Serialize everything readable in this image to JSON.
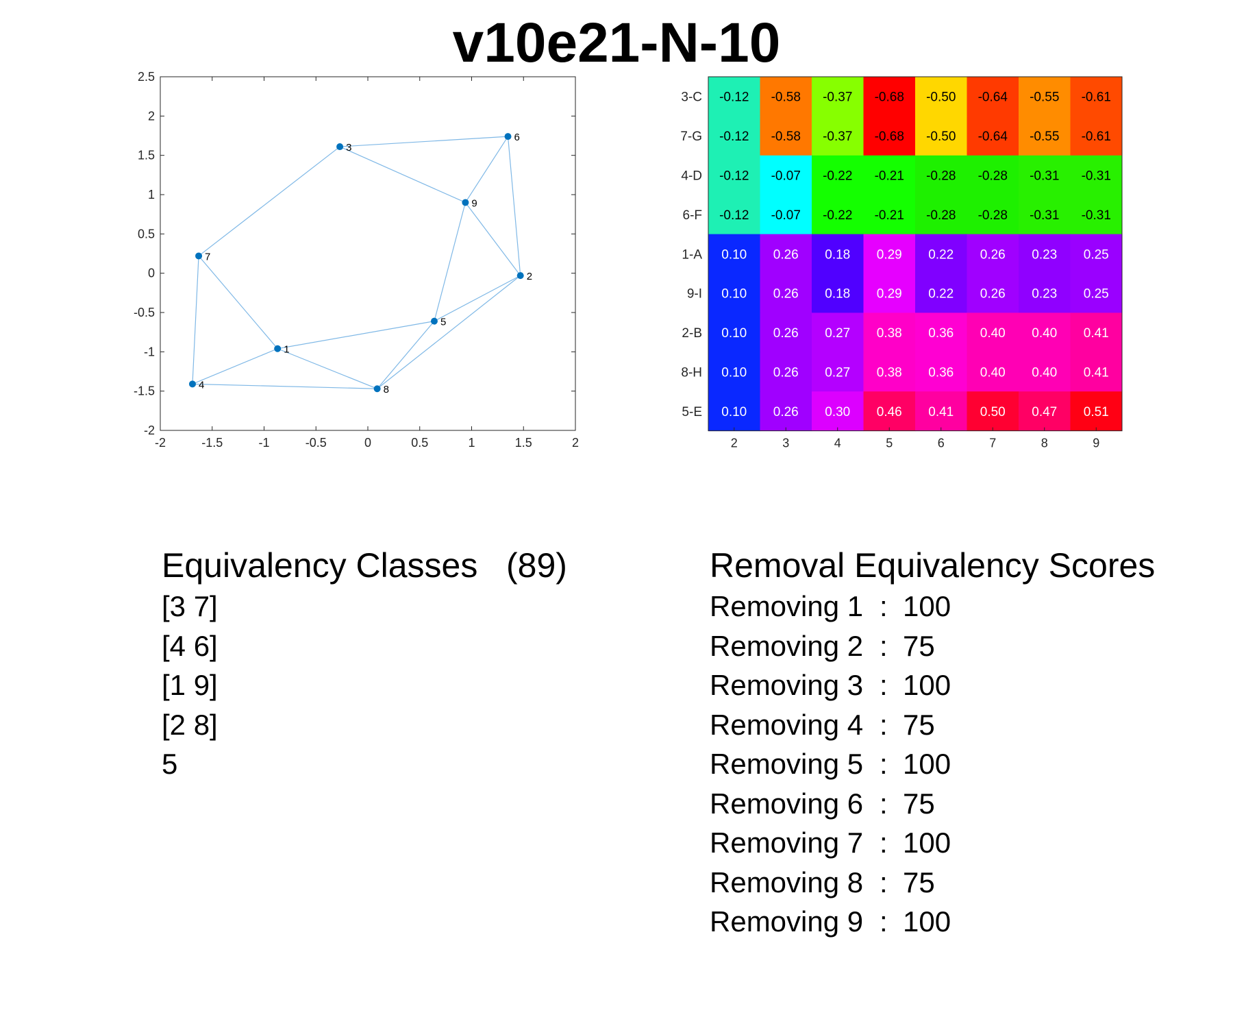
{
  "title": "v10e21-N-10",
  "chart_data": [
    {
      "type": "scatter",
      "subtype": "graph-network",
      "xlim": [
        -2,
        2
      ],
      "ylim": [
        -2,
        2.5
      ],
      "xticks": [
        "-2",
        "-1.5",
        "-1",
        "-0.5",
        "0",
        "0.5",
        "1",
        "1.5",
        "2"
      ],
      "yticks": [
        "2.5",
        "2",
        "1.5",
        "1",
        "0.5",
        "0",
        "-0.5",
        "-1",
        "-1.5",
        "-2"
      ],
      "grid": false,
      "node_color": "#0072bd",
      "edge_color": "#7fb8e6",
      "nodes": [
        {
          "id": "1",
          "x": -0.87,
          "y": -0.96
        },
        {
          "id": "2",
          "x": 1.47,
          "y": -0.03
        },
        {
          "id": "3",
          "x": -0.27,
          "y": 1.61
        },
        {
          "id": "4",
          "x": -1.69,
          "y": -1.41
        },
        {
          "id": "5",
          "x": 0.64,
          "y": -0.61
        },
        {
          "id": "6",
          "x": 1.35,
          "y": 1.74
        },
        {
          "id": "7",
          "x": -1.63,
          "y": 0.22
        },
        {
          "id": "8",
          "x": 0.09,
          "y": -1.47
        },
        {
          "id": "9",
          "x": 0.94,
          "y": 0.9
        }
      ],
      "edges": [
        [
          "3",
          "6"
        ],
        [
          "3",
          "7"
        ],
        [
          "3",
          "9"
        ],
        [
          "6",
          "9"
        ],
        [
          "6",
          "2"
        ],
        [
          "9",
          "2"
        ],
        [
          "9",
          "5"
        ],
        [
          "7",
          "1"
        ],
        [
          "7",
          "4"
        ],
        [
          "1",
          "4"
        ],
        [
          "1",
          "5"
        ],
        [
          "1",
          "8"
        ],
        [
          "4",
          "8"
        ],
        [
          "5",
          "8"
        ],
        [
          "5",
          "2"
        ],
        [
          "8",
          "2"
        ]
      ]
    },
    {
      "type": "heatmap",
      "row_labels": [
        "3-C",
        "7-G",
        "4-D",
        "6-F",
        "1-A",
        "9-I",
        "2-B",
        "8-H",
        "5-E"
      ],
      "col_labels": [
        "2",
        "3",
        "4",
        "5",
        "6",
        "7",
        "8",
        "9"
      ],
      "values": [
        [
          "-0.12",
          "-0.58",
          "-0.37",
          "-0.68",
          "-0.50",
          "-0.64",
          "-0.55",
          "-0.61"
        ],
        [
          "-0.12",
          "-0.58",
          "-0.37",
          "-0.68",
          "-0.50",
          "-0.64",
          "-0.55",
          "-0.61"
        ],
        [
          "-0.12",
          "-0.07",
          "-0.22",
          "-0.21",
          "-0.28",
          "-0.28",
          "-0.31",
          "-0.31"
        ],
        [
          "-0.12",
          "-0.07",
          "-0.22",
          "-0.21",
          "-0.28",
          "-0.28",
          "-0.31",
          "-0.31"
        ],
        [
          "0.10",
          "0.26",
          "0.18",
          "0.29",
          "0.22",
          "0.26",
          "0.23",
          "0.25"
        ],
        [
          "0.10",
          "0.26",
          "0.18",
          "0.29",
          "0.22",
          "0.26",
          "0.23",
          "0.25"
        ],
        [
          "0.10",
          "0.26",
          "0.27",
          "0.38",
          "0.36",
          "0.40",
          "0.40",
          "0.41"
        ],
        [
          "0.10",
          "0.26",
          "0.27",
          "0.38",
          "0.36",
          "0.40",
          "0.40",
          "0.41"
        ],
        [
          "0.10",
          "0.26",
          "0.30",
          "0.46",
          "0.41",
          "0.50",
          "0.47",
          "0.51"
        ]
      ],
      "colors": [
        [
          "#1ef0b4",
          "#ff7800",
          "#87ff00",
          "#ff0000",
          "#ffd700",
          "#ff3a00",
          "#ff8c00",
          "#ff4a00"
        ],
        [
          "#1ef0b4",
          "#ff7800",
          "#87ff00",
          "#ff0000",
          "#ffd700",
          "#ff3a00",
          "#ff8c00",
          "#ff4a00"
        ],
        [
          "#1ef0b4",
          "#00ffff",
          "#14ff00",
          "#14ff00",
          "#1ef000",
          "#1ef000",
          "#28f000",
          "#28f000"
        ],
        [
          "#1ef0b4",
          "#00ffff",
          "#14ff00",
          "#14ff00",
          "#1ef000",
          "#1ef000",
          "#28f000",
          "#28f000"
        ],
        [
          "#0a28ff",
          "#a000ff",
          "#5000ff",
          "#e600ff",
          "#8000ff",
          "#a000ff",
          "#9000ff",
          "#9a00ff"
        ],
        [
          "#0a28ff",
          "#a000ff",
          "#5000ff",
          "#e600ff",
          "#8000ff",
          "#a000ff",
          "#9000ff",
          "#9a00ff"
        ],
        [
          "#0a28ff",
          "#a000ff",
          "#b400ff",
          "#ff00c8",
          "#ff00d2",
          "#ff00b4",
          "#ff00b4",
          "#ff00a0"
        ],
        [
          "#0a28ff",
          "#a000ff",
          "#b400ff",
          "#ff00c8",
          "#ff00d2",
          "#ff00b4",
          "#ff00b4",
          "#ff00a0"
        ],
        [
          "#0a28ff",
          "#a000ff",
          "#dc00ff",
          "#ff0064",
          "#ff00a0",
          "#ff0032",
          "#ff0064",
          "#ff0014"
        ]
      ],
      "text_colors": [
        "#000000",
        "#000000",
        "#000000",
        "#000000",
        "#ffffff",
        "#ffffff",
        "#ffffff",
        "#ffffff",
        "#ffffff"
      ]
    }
  ],
  "equivalency": {
    "heading": "Equivalency Classes   (89)",
    "items": [
      "[3 7]",
      "[4 6]",
      "[1 9]",
      "[2 8]",
      "5"
    ]
  },
  "removal": {
    "heading": "Removal Equivalency Scores",
    "separator": ":",
    "rows": [
      {
        "label": "Removing 1",
        "score": "100"
      },
      {
        "label": "Removing 2",
        "score": "75"
      },
      {
        "label": "Removing 3",
        "score": "100"
      },
      {
        "label": "Removing 4",
        "score": "75"
      },
      {
        "label": "Removing 5",
        "score": "100"
      },
      {
        "label": "Removing 6",
        "score": "75"
      },
      {
        "label": "Removing 7",
        "score": "100"
      },
      {
        "label": "Removing 8",
        "score": "75"
      },
      {
        "label": "Removing 9",
        "score": "100"
      }
    ]
  }
}
